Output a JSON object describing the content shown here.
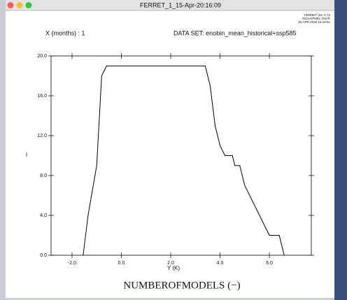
{
  "window_title": "FERRET_1_15-Apr-20:16:09",
  "chart_data": {
    "type": "line",
    "header_left": "X (months) : 1",
    "header_right": "DATA SET: enobin_mean_historical+ssp585",
    "stamp": [
      "FERRET Ver. 6.72",
      "NOAA/PMEL TMAP",
      "15-APR-2020 16:16:51"
    ],
    "title": "NUMBEROFMODELS (−)",
    "x_label": "Y (K)",
    "y_label": "I",
    "x": [
      -1.55,
      -1.35,
      -1.0,
      -0.8,
      -0.6,
      3.4,
      3.6,
      3.8,
      4.0,
      4.2,
      4.5,
      4.6,
      4.8,
      5.0,
      5.6,
      6.0,
      6.4,
      6.6
    ],
    "series": [
      {
        "color": "#000000",
        "values": [
          0,
          4,
          9,
          18,
          19,
          19,
          17,
          13,
          11,
          10,
          10,
          9,
          9,
          7,
          4,
          2,
          2,
          0
        ]
      }
    ],
    "xlim": [
      -2.85,
      7.7
    ],
    "ylim": [
      0,
      20
    ],
    "xticks": [
      {
        "value": -2,
        "label": "-2.0"
      },
      {
        "value": 0,
        "label": "0.0"
      },
      {
        "value": 2,
        "label": "2.0"
      },
      {
        "value": 4,
        "label": "4.0"
      },
      {
        "value": 6,
        "label": "6.0"
      }
    ],
    "yticks": [
      {
        "value": 0,
        "label": "0.0"
      },
      {
        "value": 4,
        "label": "4.0"
      },
      {
        "value": 8,
        "label": "8.0"
      },
      {
        "value": 12,
        "label": "12.0"
      },
      {
        "value": 16,
        "label": "16.0"
      },
      {
        "value": 20,
        "label": "20.0"
      }
    ]
  }
}
